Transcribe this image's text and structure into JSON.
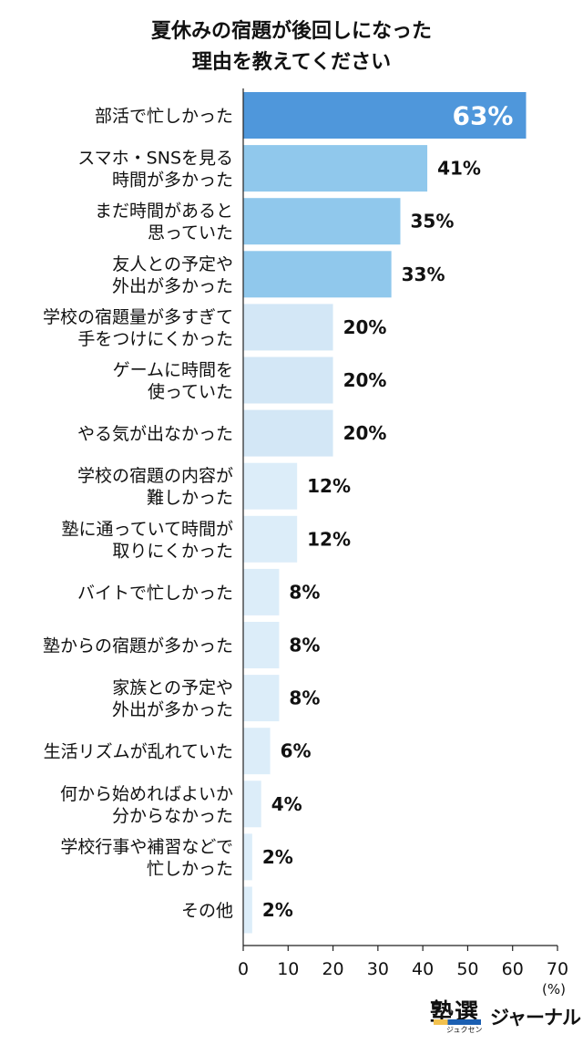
{
  "chart_data": {
    "type": "bar",
    "orientation": "horizontal",
    "title_lines": [
      "夏休みの宿題が後回しになった",
      "理由を教えてください"
    ],
    "categories": [
      [
        "部活で忙しかった"
      ],
      [
        "スマホ・SNSを見る",
        "時間が多かった"
      ],
      [
        "まだ時間があると",
        "思っていた"
      ],
      [
        "友人との予定や",
        "外出が多かった"
      ],
      [
        "学校の宿題量が多すぎて",
        "手をつけにくかった"
      ],
      [
        "ゲームに時間を",
        "使っていた"
      ],
      [
        "やる気が出なかった"
      ],
      [
        "学校の宿題の内容が",
        "難しかった"
      ],
      [
        "塾に通っていて時間が",
        "取りにくかった"
      ],
      [
        "バイトで忙しかった"
      ],
      [
        "塾からの宿題が多かった"
      ],
      [
        "家族との予定や",
        "外出が多かった"
      ],
      [
        "生活リズムが乱れていた"
      ],
      [
        "何から始めればよいか",
        "分からなかった"
      ],
      [
        "学校行事や補習などで",
        "忙しかった"
      ],
      [
        "その他"
      ]
    ],
    "values": [
      63,
      41,
      35,
      33,
      20,
      20,
      20,
      12,
      12,
      8,
      8,
      8,
      6,
      4,
      2,
      2
    ],
    "value_labels": [
      "63%",
      "41%",
      "35%",
      "33%",
      "20%",
      "20%",
      "20%",
      "12%",
      "12%",
      "8%",
      "8%",
      "8%",
      "6%",
      "4%",
      "2%",
      "2%"
    ],
    "xlim": [
      0,
      70
    ],
    "x_ticks": [
      0,
      10,
      20,
      30,
      40,
      50,
      60,
      70
    ],
    "unit_label": "(%)",
    "grid": false,
    "colors": {
      "top": "#4f97db",
      "high": "#90c8ec",
      "mid": "#d3e7f6",
      "low": "#dcedf9",
      "axis": "#222222"
    }
  },
  "brand": {
    "kanji": "塾選",
    "kana": "ジャーナル",
    "ruby": "ジュクセン",
    "accent_color": "#1b5fb2"
  }
}
